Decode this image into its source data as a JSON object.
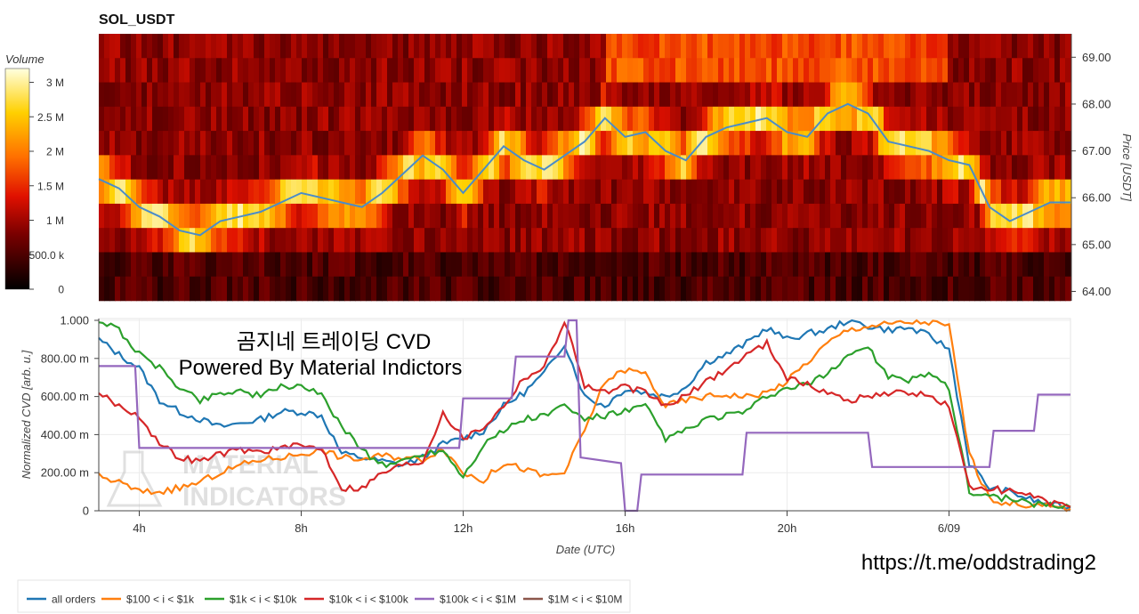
{
  "heatmap": {
    "title": "SOL_USDT",
    "colorbar_title": "Volume",
    "colorbar_ticks": [
      {
        "value": 3000000,
        "label": "3 M"
      },
      {
        "value": 2500000,
        "label": "2.5 M"
      },
      {
        "value": 2000000,
        "label": "2 M"
      },
      {
        "value": 1500000,
        "label": "1.5 M"
      },
      {
        "value": 1000000,
        "label": "1 M"
      },
      {
        "value": 500000,
        "label": "500.0 k"
      },
      {
        "value": 0,
        "label": "0"
      }
    ],
    "price_label": "Price [USDT]",
    "price_ticks": [
      "64.00",
      "65.00",
      "66.00",
      "67.00",
      "68.00",
      "69.00"
    ]
  },
  "cvd": {
    "ylabel": "Normalized CVD [arb. u.]",
    "xlabel": "Date (UTC)",
    "y_ticks": [
      "0",
      "200.00 m",
      "400.00 m",
      "600.00 m",
      "800.00 m",
      "1.000"
    ],
    "x_ticks": [
      "4h",
      "8h",
      "12h",
      "16h",
      "20h",
      "6/09"
    ]
  },
  "overlay": {
    "title_line1": "곰지네 트레이딩 CVD",
    "title_line2": "Powered By Material Indictors",
    "watermark_line1": "MATERIAL",
    "watermark_line2": "INDICATORS",
    "url": "https://t.me/oddstrading2"
  },
  "legend": {
    "items": [
      {
        "label": "all orders",
        "color": "#1f77b4"
      },
      {
        "label": "$100 < i < $1k",
        "color": "#ff7f0e"
      },
      {
        "label": "$1k < i < $10k",
        "color": "#2ca02c"
      },
      {
        "label": "$10k < i < $100k",
        "color": "#d62728"
      },
      {
        "label": "$100k < i < $1M",
        "color": "#9467bd"
      },
      {
        "label": "$1M < i < $10M",
        "color": "#8c564b"
      }
    ]
  },
  "chart_data": [
    {
      "type": "heatmap",
      "title": "SOL_USDT",
      "x_range_hours": [
        3,
        27
      ],
      "y_label": "Price [USDT]",
      "y_range": [
        63.8,
        69.5
      ],
      "colorbar": {
        "label": "Volume",
        "range": [
          0,
          3200000
        ]
      },
      "price_line": {
        "color": "#4a8cc9",
        "x": [
          3,
          3.5,
          4,
          4.5,
          5,
          5.5,
          6,
          6.5,
          7,
          7.5,
          8,
          8.5,
          9,
          9.5,
          10,
          10.5,
          11,
          11.5,
          12,
          12.5,
          13,
          13.5,
          14,
          14.5,
          15,
          15.5,
          16,
          16.5,
          17,
          17.5,
          18,
          18.5,
          19,
          19.5,
          20,
          20.5,
          21,
          21.5,
          22,
          22.5,
          23,
          23.5,
          24,
          24.5,
          25,
          25.5,
          26,
          26.5,
          27
        ],
        "y": [
          66.4,
          66.2,
          65.8,
          65.6,
          65.3,
          65.2,
          65.5,
          65.6,
          65.7,
          65.9,
          66.1,
          66.0,
          65.9,
          65.8,
          66.1,
          66.5,
          66.9,
          66.6,
          66.1,
          66.6,
          67.1,
          66.8,
          66.6,
          66.9,
          67.2,
          67.7,
          67.3,
          67.4,
          67.0,
          66.8,
          67.3,
          67.5,
          67.6,
          67.7,
          67.4,
          67.3,
          67.8,
          68.0,
          67.8,
          67.2,
          67.1,
          67.0,
          66.8,
          66.7,
          65.8,
          65.5,
          65.7,
          65.9,
          65.9
        ]
      }
    },
    {
      "type": "line",
      "xlabel": "Date (UTC)",
      "ylabel": "Normalized CVD [arb. u.]",
      "x_range_hours": [
        3,
        27
      ],
      "ylim": [
        0,
        1
      ],
      "series": [
        {
          "name": "all orders",
          "color": "#1f77b4",
          "x": [
            3,
            3.5,
            4,
            4.5,
            5,
            5.5,
            6,
            6.5,
            7,
            7.5,
            8,
            8.5,
            9,
            9.5,
            10,
            10.5,
            11,
            11.5,
            12,
            12.5,
            13,
            13.5,
            14,
            14.5,
            15,
            15.5,
            16,
            16.5,
            17,
            17.5,
            18,
            18.5,
            19,
            19.5,
            20,
            20.5,
            21,
            21.5,
            22,
            22.5,
            23,
            23.5,
            24,
            24.5,
            25,
            25.5,
            26,
            26.5,
            27
          ],
          "y": [
            0.9,
            0.82,
            0.75,
            0.58,
            0.52,
            0.48,
            0.44,
            0.46,
            0.48,
            0.52,
            0.52,
            0.5,
            0.3,
            0.28,
            0.26,
            0.24,
            0.28,
            0.35,
            0.38,
            0.42,
            0.55,
            0.62,
            0.72,
            0.88,
            0.6,
            0.55,
            0.64,
            0.62,
            0.6,
            0.65,
            0.78,
            0.82,
            0.88,
            0.96,
            0.9,
            0.93,
            0.95,
            1.0,
            0.97,
            0.95,
            0.96,
            0.92,
            0.85,
            0.25,
            0.12,
            0.1,
            0.06,
            0.03,
            0.02
          ]
        },
        {
          "name": "$100 < i < $1k",
          "color": "#ff7f0e",
          "x": [
            3,
            3.5,
            4,
            4.5,
            5,
            5.5,
            6,
            6.5,
            7,
            7.5,
            8,
            8.5,
            9,
            9.5,
            10,
            10.5,
            11,
            11.5,
            12,
            12.5,
            13,
            13.5,
            14,
            14.5,
            15,
            15.5,
            16,
            16.5,
            17,
            17.5,
            18,
            18.5,
            19,
            19.5,
            20,
            20.5,
            21,
            21.5,
            22,
            22.5,
            23,
            23.5,
            24,
            24.5,
            25,
            25.5,
            26,
            26.5,
            27
          ],
          "y": [
            0.18,
            0.15,
            0.1,
            0.1,
            0.12,
            0.15,
            0.2,
            0.24,
            0.27,
            0.28,
            0.3,
            0.32,
            0.28,
            0.27,
            0.29,
            0.28,
            0.27,
            0.33,
            0.2,
            0.16,
            0.25,
            0.22,
            0.18,
            0.2,
            0.42,
            0.68,
            0.74,
            0.72,
            0.55,
            0.58,
            0.6,
            0.61,
            0.6,
            0.62,
            0.68,
            0.78,
            0.88,
            0.95,
            0.97,
            0.98,
            0.99,
            0.99,
            0.97,
            0.3,
            0.06,
            0.04,
            0.03,
            0.02,
            0.01
          ]
        },
        {
          "name": "$1k < i < $10k",
          "color": "#2ca02c",
          "x": [
            3,
            3.5,
            4,
            4.5,
            5,
            5.5,
            6,
            6.5,
            7,
            7.5,
            8,
            8.5,
            9,
            9.5,
            10,
            10.5,
            11,
            11.5,
            12,
            12.5,
            13,
            13.5,
            14,
            14.5,
            15,
            15.5,
            16,
            16.5,
            17,
            17.5,
            18,
            18.5,
            19,
            19.5,
            20,
            20.5,
            21,
            21.5,
            22,
            22.5,
            23,
            23.5,
            24,
            24.5,
            25,
            25.5,
            26,
            26.5,
            27
          ],
          "y": [
            1.0,
            0.95,
            0.82,
            0.75,
            0.65,
            0.58,
            0.62,
            0.63,
            0.6,
            0.65,
            0.66,
            0.6,
            0.45,
            0.32,
            0.24,
            0.26,
            0.3,
            0.32,
            0.18,
            0.35,
            0.42,
            0.48,
            0.5,
            0.55,
            0.48,
            0.5,
            0.52,
            0.55,
            0.38,
            0.42,
            0.48,
            0.5,
            0.52,
            0.6,
            0.64,
            0.66,
            0.72,
            0.82,
            0.86,
            0.7,
            0.68,
            0.73,
            0.65,
            0.1,
            0.08,
            0.06,
            0.04,
            0.03,
            0.02
          ]
        },
        {
          "name": "$10k < i < $100k",
          "color": "#d62728",
          "x": [
            3,
            3.5,
            4,
            4.5,
            5,
            5.5,
            6,
            6.5,
            7,
            7.5,
            8,
            8.5,
            9,
            9.5,
            10,
            10.5,
            11,
            11.5,
            12,
            12.5,
            13,
            13.5,
            14,
            14.5,
            15,
            15.5,
            16,
            16.5,
            17,
            17.5,
            18,
            18.5,
            19,
            19.5,
            20,
            20.5,
            21,
            21.5,
            22,
            22.5,
            23,
            23.5,
            24,
            24.5,
            25,
            25.5,
            26,
            26.5,
            27
          ],
          "y": [
            0.62,
            0.55,
            0.5,
            0.35,
            0.28,
            0.26,
            0.3,
            0.32,
            0.31,
            0.33,
            0.34,
            0.33,
            0.12,
            0.12,
            0.2,
            0.24,
            0.26,
            0.52,
            0.38,
            0.44,
            0.55,
            0.7,
            0.75,
            1.0,
            0.66,
            0.62,
            0.65,
            0.62,
            0.55,
            0.6,
            0.68,
            0.74,
            0.82,
            0.88,
            0.7,
            0.66,
            0.62,
            0.58,
            0.6,
            0.62,
            0.62,
            0.6,
            0.55,
            0.12,
            0.12,
            0.1,
            0.08,
            0.04,
            0.02
          ]
        },
        {
          "name": "$100k < i < $1M",
          "color": "#9467bd",
          "x": [
            3,
            3.9,
            4.0,
            11.5,
            11.9,
            12.0,
            13.2,
            13.3,
            14.5,
            14.6,
            14.8,
            14.9,
            15.9,
            16.0,
            16.3,
            16.4,
            18.9,
            19.0,
            22.0,
            22.1,
            25.0,
            25.1,
            26.1,
            26.2,
            27.0
          ],
          "y": [
            0.76,
            0.76,
            0.33,
            0.33,
            0.33,
            0.59,
            0.59,
            0.81,
            0.81,
            1.0,
            1.0,
            0.28,
            0.25,
            0.0,
            0.0,
            0.19,
            0.19,
            0.41,
            0.41,
            0.23,
            0.23,
            0.42,
            0.42,
            0.61,
            0.61
          ]
        },
        {
          "name": "$1M < i < $10M",
          "color": "#8c564b",
          "x": [],
          "y": []
        }
      ]
    }
  ]
}
